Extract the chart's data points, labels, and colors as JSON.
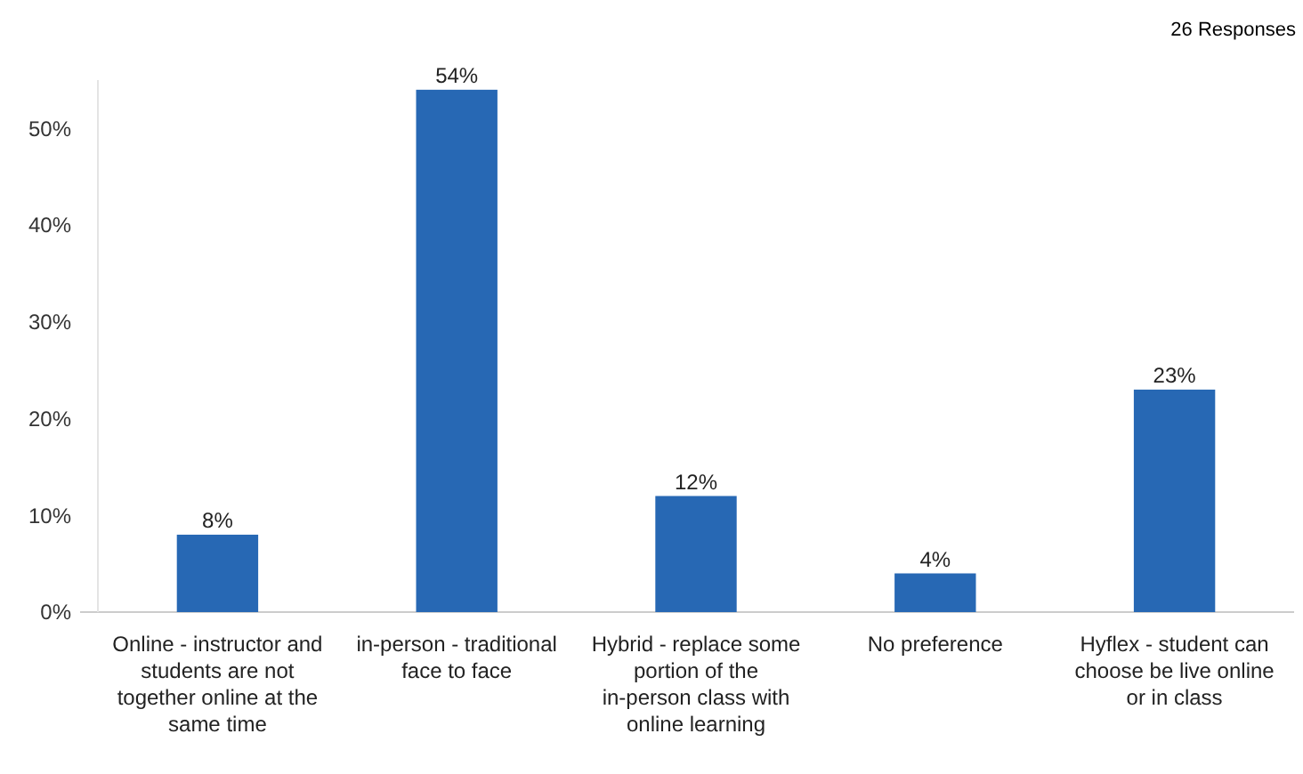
{
  "chart_data": {
    "type": "bar",
    "annotations": [
      "26 Responses"
    ],
    "categories": [
      "Online - instructor and students are not together online at the same time",
      "in-person - traditional face to face",
      "Hybrid - replace some portion of the in-person class with online learning",
      "No preference",
      "Hyflex - student can choose be live online or in class"
    ],
    "values": [
      8,
      54,
      12,
      4,
      23
    ],
    "color": "#2768b4",
    "data_labels": true,
    "value_labels": [
      "8%",
      "54%",
      "12%",
      "4%",
      "23%"
    ],
    "ylim": [
      0,
      55
    ],
    "yticks": [
      {
        "value": 0,
        "label": "0%"
      },
      {
        "value": 10,
        "label": "10%"
      },
      {
        "value": 20,
        "label": "20%"
      },
      {
        "value": 30,
        "label": "30%"
      },
      {
        "value": 40,
        "label": "40%"
      },
      {
        "value": 50,
        "label": "50%"
      }
    ],
    "grid": false
  }
}
